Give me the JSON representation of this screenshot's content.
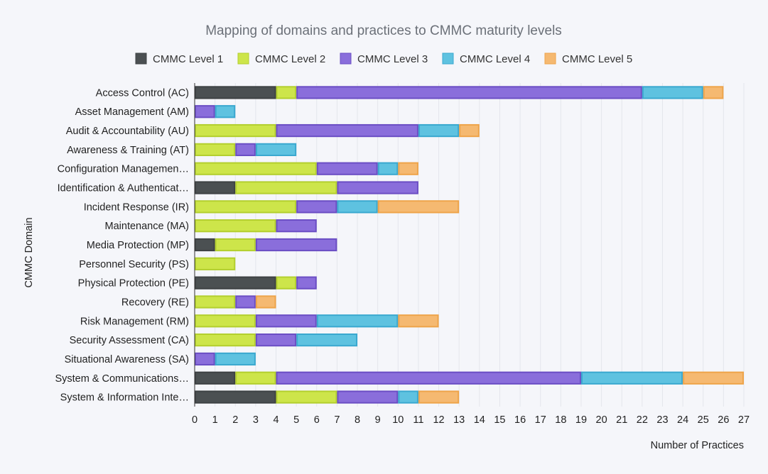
{
  "chart_data": {
    "type": "bar",
    "orientation": "horizontal",
    "stacked": true,
    "title": "Mapping of domains and practices to CMMC maturity levels",
    "xlabel": "Number of Practices",
    "ylabel": "CMMC Domain",
    "xlim": [
      0,
      27
    ],
    "xticks": [
      0,
      1,
      2,
      3,
      4,
      5,
      6,
      7,
      8,
      9,
      10,
      11,
      12,
      13,
      14,
      15,
      16,
      17,
      18,
      19,
      20,
      21,
      22,
      23,
      24,
      25,
      26,
      27
    ],
    "grid": true,
    "legend_position": "top",
    "categories": [
      "Access Control (AC)",
      "Asset Management (AM)",
      "Audit & Accountability (AU)",
      "Awareness & Training (AT)",
      "Configuration Managemen…",
      "Identification & Authenticat…",
      "Incident Response (IR)",
      "Maintenance (MA)",
      "Media Protection (MP)",
      "Personnel Security (PS)",
      "Physical Protection (PE)",
      "Recovery (RE)",
      "Risk Management (RM)",
      "Security Assessment (CA)",
      "Situational Awareness (SA)",
      "System & Communications…",
      "System & Information Inte…"
    ],
    "series": [
      {
        "name": "CMMC Level 1",
        "color": "#4b5052",
        "values": [
          4,
          0,
          0,
          0,
          0,
          2,
          0,
          0,
          1,
          0,
          4,
          0,
          0,
          0,
          0,
          2,
          4
        ]
      },
      {
        "name": "CMMC Level 2",
        "color": "#cde54a",
        "values": [
          1,
          0,
          4,
          2,
          6,
          5,
          5,
          4,
          2,
          2,
          1,
          2,
          3,
          3,
          0,
          2,
          3
        ]
      },
      {
        "name": "CMMC Level 3",
        "color": "#8a6edb",
        "values": [
          17,
          1,
          7,
          1,
          3,
          4,
          2,
          2,
          4,
          0,
          1,
          1,
          3,
          2,
          1,
          15,
          3
        ]
      },
      {
        "name": "CMMC Level 4",
        "color": "#5ec2e0",
        "values": [
          3,
          1,
          2,
          2,
          1,
          0,
          2,
          0,
          0,
          0,
          0,
          0,
          4,
          3,
          2,
          5,
          1
        ]
      },
      {
        "name": "CMMC Level 5",
        "color": "#f5b971",
        "values": [
          1,
          0,
          1,
          0,
          1,
          0,
          4,
          0,
          0,
          0,
          0,
          1,
          2,
          0,
          0,
          3,
          2
        ]
      }
    ],
    "border_colors": [
      "#3e4244",
      "#b3cf2e",
      "#6b4ec4",
      "#3aa8cf",
      "#eea44a"
    ]
  }
}
